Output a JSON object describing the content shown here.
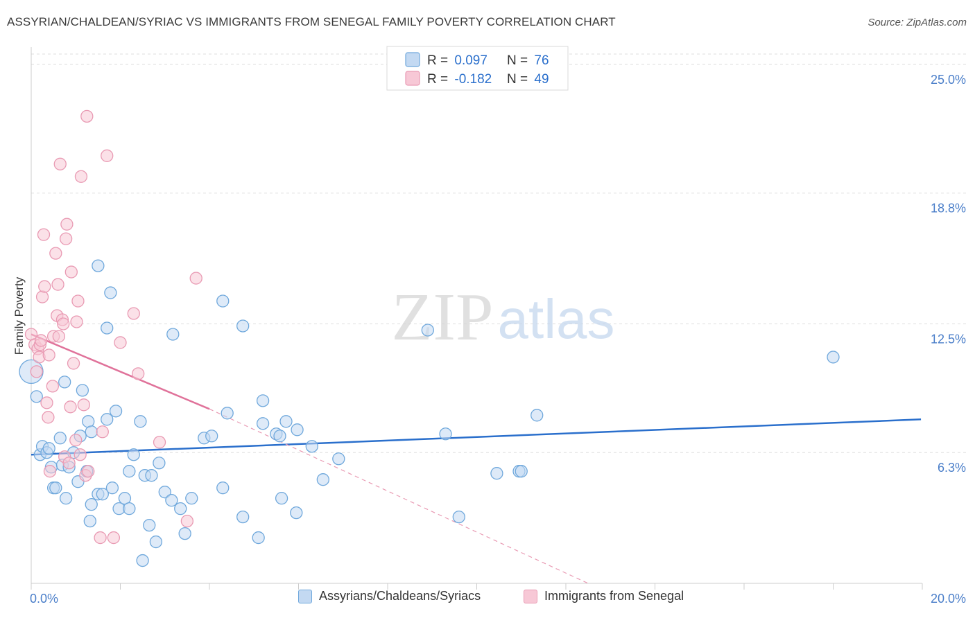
{
  "header": {
    "title": "ASSYRIAN/CHALDEAN/SYRIAC VS IMMIGRANTS FROM SENEGAL FAMILY POVERTY CORRELATION CHART",
    "source": "Source: ZipAtlas.com"
  },
  "watermark": {
    "zip": "ZIP",
    "atlas": "atlas"
  },
  "colors": {
    "blue": "#6fa8dc",
    "blue_fill": "#c3d9f2",
    "blue_line": "#2a6fcc",
    "pink": "#e99ab3",
    "pink_fill": "#f7c8d6",
    "pink_line": "#e0729a",
    "axis_text": "#4a7ec9",
    "grid": "#dddddd"
  },
  "legend_top": [
    {
      "r_label": "R = ",
      "r_value": "0.097",
      "n_label": "N = ",
      "n_value": "76"
    },
    {
      "r_label": "R = ",
      "r_value": "-0.182",
      "n_label": "N = ",
      "n_value": "49"
    }
  ],
  "legend_bottom": [
    {
      "label": "Assyrians/Chaldeans/Syriacs"
    },
    {
      "label": "Immigrants from Senegal"
    }
  ],
  "chart_data": {
    "type": "scatter",
    "title": "ASSYRIAN/CHALDEAN/SYRIAC VS IMMIGRANTS FROM SENEGAL FAMILY POVERTY CORRELATION CHART",
    "xlabel": "",
    "ylabel": "Family Poverty",
    "xlim": [
      0,
      20
    ],
    "ylim": [
      0,
      25.6
    ],
    "x_tick_labels": [
      "0.0%",
      "20.0%"
    ],
    "y_ticks": [
      6.3,
      12.5,
      18.8,
      25.0
    ],
    "y_tick_labels": [
      "6.3%",
      "12.5%",
      "18.8%",
      "25.0%"
    ],
    "grid": true,
    "legend_position": "top-center",
    "series": [
      {
        "name": "Assyrians/Chaldeans/Syriacs",
        "R": 0.097,
        "N": 76,
        "trend": {
          "x": [
            0,
            19.97
          ],
          "y": [
            6.2,
            7.9
          ]
        },
        "points": [
          {
            "x": 0.0,
            "y": 10.2,
            "big": true
          },
          {
            "x": 0.12,
            "y": 9.0
          },
          {
            "x": 0.2,
            "y": 6.2
          },
          {
            "x": 0.25,
            "y": 6.6
          },
          {
            "x": 0.35,
            "y": 6.3
          },
          {
            "x": 0.4,
            "y": 6.5
          },
          {
            "x": 0.45,
            "y": 5.6
          },
          {
            "x": 0.5,
            "y": 4.6
          },
          {
            "x": 0.55,
            "y": 4.6
          },
          {
            "x": 0.65,
            "y": 7.0
          },
          {
            "x": 0.7,
            "y": 5.7
          },
          {
            "x": 0.75,
            "y": 9.7
          },
          {
            "x": 0.78,
            "y": 4.1
          },
          {
            "x": 0.85,
            "y": 5.6
          },
          {
            "x": 0.95,
            "y": 6.3
          },
          {
            "x": 1.05,
            "y": 4.9
          },
          {
            "x": 1.1,
            "y": 7.1
          },
          {
            "x": 1.15,
            "y": 9.3
          },
          {
            "x": 1.25,
            "y": 5.4
          },
          {
            "x": 1.28,
            "y": 7.8
          },
          {
            "x": 1.32,
            "y": 3.0
          },
          {
            "x": 1.35,
            "y": 7.3
          },
          {
            "x": 1.35,
            "y": 3.8
          },
          {
            "x": 1.5,
            "y": 4.3
          },
          {
            "x": 1.5,
            "y": 15.3
          },
          {
            "x": 1.6,
            "y": 4.3
          },
          {
            "x": 1.7,
            "y": 7.9
          },
          {
            "x": 1.7,
            "y": 12.3
          },
          {
            "x": 1.78,
            "y": 14.0
          },
          {
            "x": 1.82,
            "y": 4.6
          },
          {
            "x": 1.9,
            "y": 8.3
          },
          {
            "x": 1.97,
            "y": 3.6
          },
          {
            "x": 2.1,
            "y": 4.1
          },
          {
            "x": 2.2,
            "y": 3.6
          },
          {
            "x": 2.2,
            "y": 5.4
          },
          {
            "x": 2.3,
            "y": 6.2
          },
          {
            "x": 2.45,
            "y": 7.8
          },
          {
            "x": 2.5,
            "y": 1.1
          },
          {
            "x": 2.55,
            "y": 5.2
          },
          {
            "x": 2.65,
            "y": 2.8
          },
          {
            "x": 2.7,
            "y": 5.2
          },
          {
            "x": 2.8,
            "y": 2.0
          },
          {
            "x": 2.87,
            "y": 5.8
          },
          {
            "x": 3.0,
            "y": 4.4
          },
          {
            "x": 3.15,
            "y": 4.0
          },
          {
            "x": 3.18,
            "y": 12.0
          },
          {
            "x": 3.35,
            "y": 3.6
          },
          {
            "x": 3.45,
            "y": 2.4
          },
          {
            "x": 3.6,
            "y": 4.1
          },
          {
            "x": 3.88,
            "y": 7.0
          },
          {
            "x": 4.05,
            "y": 7.1
          },
          {
            "x": 4.3,
            "y": 4.6
          },
          {
            "x": 4.3,
            "y": 13.6
          },
          {
            "x": 4.4,
            "y": 8.2
          },
          {
            "x": 4.75,
            "y": 3.2
          },
          {
            "x": 4.75,
            "y": 12.4
          },
          {
            "x": 5.1,
            "y": 2.2
          },
          {
            "x": 5.2,
            "y": 8.8
          },
          {
            "x": 5.2,
            "y": 7.7
          },
          {
            "x": 5.5,
            "y": 7.2
          },
          {
            "x": 5.58,
            "y": 7.1
          },
          {
            "x": 5.62,
            "y": 4.1
          },
          {
            "x": 5.72,
            "y": 7.8
          },
          {
            "x": 5.95,
            "y": 3.4
          },
          {
            "x": 5.97,
            "y": 7.4
          },
          {
            "x": 6.3,
            "y": 6.6
          },
          {
            "x": 6.55,
            "y": 5.0
          },
          {
            "x": 6.9,
            "y": 6.0
          },
          {
            "x": 8.9,
            "y": 12.2
          },
          {
            "x": 9.3,
            "y": 7.2
          },
          {
            "x": 9.6,
            "y": 3.2
          },
          {
            "x": 10.45,
            "y": 5.3
          },
          {
            "x": 10.95,
            "y": 5.4
          },
          {
            "x": 11.0,
            "y": 5.4
          },
          {
            "x": 11.35,
            "y": 8.1
          },
          {
            "x": 18.0,
            "y": 10.9
          }
        ]
      },
      {
        "name": "Immigrants from Senegal",
        "R": -0.182,
        "N": 49,
        "trend": {
          "x": [
            0,
            4.0
          ],
          "y": [
            12.0,
            8.4
          ]
        },
        "trend_extension": {
          "x": [
            4.0,
            12.5
          ],
          "y": [
            8.4,
            0.0
          ]
        },
        "points": [
          {
            "x": 0.0,
            "y": 12.0
          },
          {
            "x": 0.08,
            "y": 11.5
          },
          {
            "x": 0.12,
            "y": 10.2
          },
          {
            "x": 0.15,
            "y": 11.3
          },
          {
            "x": 0.18,
            "y": 10.9
          },
          {
            "x": 0.2,
            "y": 11.5
          },
          {
            "x": 0.22,
            "y": 11.7
          },
          {
            "x": 0.25,
            "y": 13.8
          },
          {
            "x": 0.28,
            "y": 16.8
          },
          {
            "x": 0.3,
            "y": 14.3
          },
          {
            "x": 0.35,
            "y": 8.7
          },
          {
            "x": 0.38,
            "y": 8.0
          },
          {
            "x": 0.4,
            "y": 11.0
          },
          {
            "x": 0.42,
            "y": 5.4
          },
          {
            "x": 0.48,
            "y": 9.5
          },
          {
            "x": 0.5,
            "y": 11.9
          },
          {
            "x": 0.55,
            "y": 15.9
          },
          {
            "x": 0.58,
            "y": 12.9
          },
          {
            "x": 0.6,
            "y": 14.4
          },
          {
            "x": 0.62,
            "y": 11.9
          },
          {
            "x": 0.65,
            "y": 20.2
          },
          {
            "x": 0.7,
            "y": 12.7
          },
          {
            "x": 0.72,
            "y": 12.5
          },
          {
            "x": 0.75,
            "y": 6.1
          },
          {
            "x": 0.78,
            "y": 16.6
          },
          {
            "x": 0.8,
            "y": 17.3
          },
          {
            "x": 0.85,
            "y": 5.8
          },
          {
            "x": 0.88,
            "y": 8.5
          },
          {
            "x": 0.9,
            "y": 15.0
          },
          {
            "x": 0.95,
            "y": 10.6
          },
          {
            "x": 1.0,
            "y": 6.9
          },
          {
            "x": 1.02,
            "y": 12.6
          },
          {
            "x": 1.05,
            "y": 13.6
          },
          {
            "x": 1.1,
            "y": 6.2
          },
          {
            "x": 1.12,
            "y": 19.6
          },
          {
            "x": 1.18,
            "y": 8.6
          },
          {
            "x": 1.22,
            "y": 5.2
          },
          {
            "x": 1.25,
            "y": 22.5
          },
          {
            "x": 1.28,
            "y": 5.4
          },
          {
            "x": 1.55,
            "y": 2.2
          },
          {
            "x": 1.6,
            "y": 7.3
          },
          {
            "x": 1.7,
            "y": 20.6
          },
          {
            "x": 1.85,
            "y": 2.2
          },
          {
            "x": 2.0,
            "y": 11.6
          },
          {
            "x": 2.3,
            "y": 13.0
          },
          {
            "x": 2.4,
            "y": 10.1
          },
          {
            "x": 2.88,
            "y": 6.8
          },
          {
            "x": 3.5,
            "y": 3.0
          },
          {
            "x": 3.7,
            "y": 14.7
          }
        ]
      }
    ]
  }
}
